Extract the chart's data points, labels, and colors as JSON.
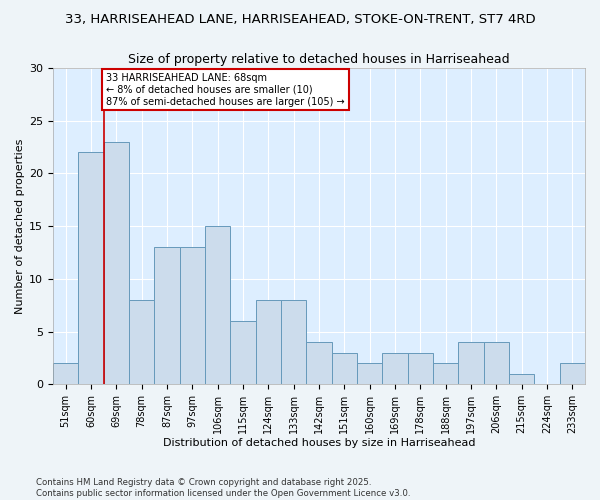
{
  "title_line1": "33, HARRISEAHEAD LANE, HARRISEAHEAD, STOKE-ON-TRENT, ST7 4RD",
  "title_line2": "Size of property relative to detached houses in Harriseahead",
  "xlabel": "Distribution of detached houses by size in Harriseahead",
  "ylabel": "Number of detached properties",
  "categories": [
    "51sqm",
    "60sqm",
    "69sqm",
    "78sqm",
    "87sqm",
    "97sqm",
    "106sqm",
    "115sqm",
    "124sqm",
    "133sqm",
    "142sqm",
    "151sqm",
    "160sqm",
    "169sqm",
    "178sqm",
    "188sqm",
    "197sqm",
    "206sqm",
    "215sqm",
    "224sqm",
    "233sqm"
  ],
  "values": [
    2,
    22,
    23,
    8,
    13,
    13,
    15,
    6,
    8,
    8,
    4,
    3,
    2,
    3,
    3,
    2,
    4,
    4,
    1,
    0,
    2
  ],
  "bar_color": "#ccdcec",
  "bar_edge_color": "#6699bb",
  "plot_bg_color": "#ddeeff",
  "fig_bg_color": "#eef4f8",
  "annotation_text": "33 HARRISEAHEAD LANE: 68sqm\n← 8% of detached houses are smaller (10)\n87% of semi-detached houses are larger (105) →",
  "annotation_box_facecolor": "#ffffff",
  "annotation_box_edgecolor": "#cc0000",
  "vline_color": "#cc0000",
  "vline_x": 1.5,
  "ylim": [
    0,
    30
  ],
  "yticks": [
    0,
    5,
    10,
    15,
    20,
    25,
    30
  ],
  "footer": "Contains HM Land Registry data © Crown copyright and database right 2025.\nContains public sector information licensed under the Open Government Licence v3.0."
}
